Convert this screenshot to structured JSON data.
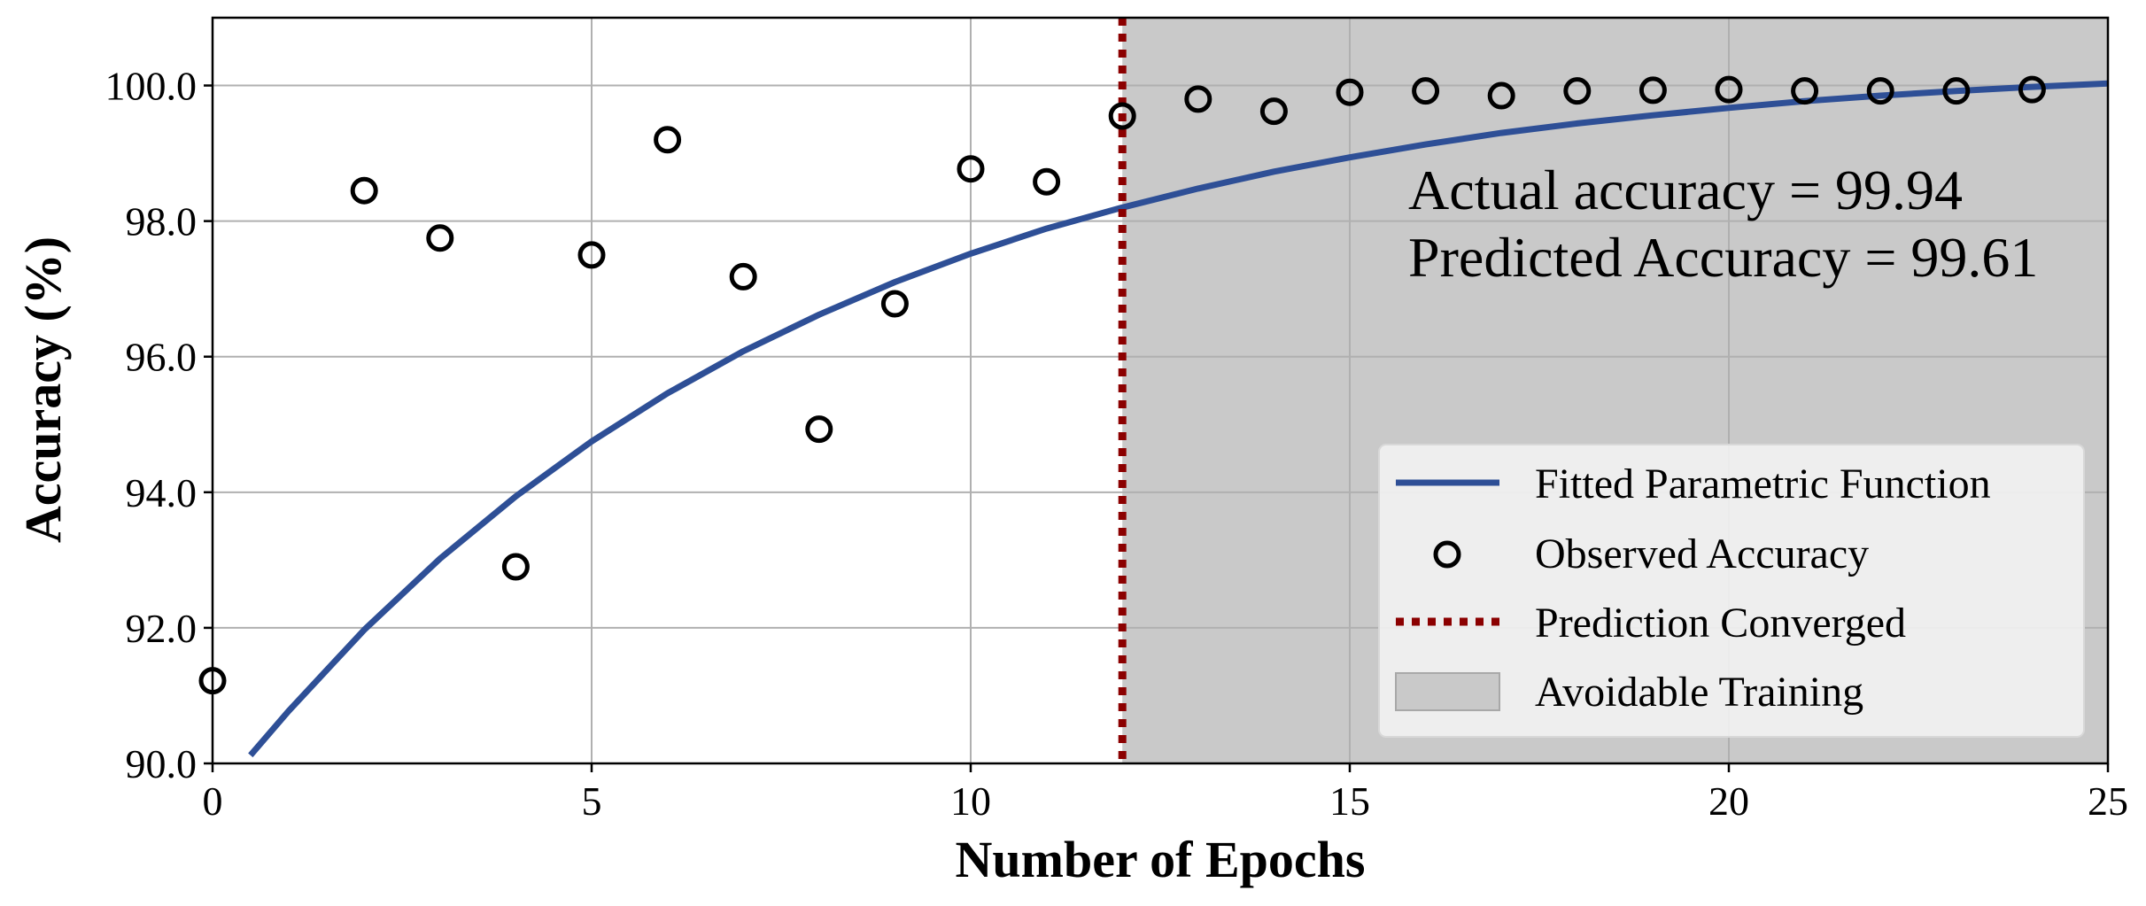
{
  "chart_data": {
    "type": "line",
    "xlabel": "Number of Epochs",
    "ylabel": "Accuracy (%)",
    "xlim": [
      0,
      25
    ],
    "ylim": [
      90,
      101
    ],
    "x_ticks": [
      0,
      5,
      10,
      15,
      20,
      25
    ],
    "x_tick_labels": [
      "0",
      "5",
      "10",
      "15",
      "20",
      "25"
    ],
    "y_ticks": [
      90,
      92,
      94,
      96,
      98,
      100
    ],
    "y_tick_labels": [
      "90.0",
      "92.0",
      "94.0",
      "96.0",
      "98.0",
      "100.0"
    ],
    "grid": true,
    "legend_position": "bottom-right",
    "annotations": [
      "Actual accuracy = 99.94",
      "Predicted Accuracy = 99.61"
    ],
    "series": [
      {
        "name": "Fitted Parametric Function",
        "kind": "line",
        "color": "#2e4f96",
        "x": [
          0.5,
          1,
          2,
          3,
          4,
          5,
          6,
          7,
          8,
          9,
          10,
          11,
          12,
          13,
          14,
          15,
          16,
          17,
          18,
          19,
          20,
          21,
          22,
          23,
          24,
          25
        ],
        "y": [
          90.12,
          90.77,
          91.97,
          93.02,
          93.94,
          94.75,
          95.46,
          96.08,
          96.62,
          97.1,
          97.52,
          97.89,
          98.2,
          98.48,
          98.73,
          98.94,
          99.13,
          99.3,
          99.44,
          99.56,
          99.67,
          99.77,
          99.85,
          99.92,
          99.98,
          100.03
        ]
      },
      {
        "name": "Observed Accuracy",
        "kind": "scatter",
        "color": "#000000",
        "x": [
          0,
          2,
          3,
          4,
          5,
          6,
          7,
          8,
          9,
          10,
          11,
          12,
          13,
          14,
          15,
          16,
          17,
          18,
          19,
          20,
          21,
          22,
          23,
          24
        ],
        "y": [
          91.22,
          98.45,
          97.75,
          92.9,
          97.5,
          99.2,
          97.18,
          94.93,
          96.78,
          98.77,
          98.58,
          99.55,
          99.8,
          99.62,
          99.9,
          99.92,
          99.85,
          99.92,
          99.93,
          99.94,
          99.92,
          99.92,
          99.92,
          99.94
        ]
      },
      {
        "name": "Prediction Converged",
        "kind": "vline",
        "color": "#8b0000",
        "x": 12
      },
      {
        "name": "Avoidable Training",
        "kind": "span",
        "color": "#c9c9c9",
        "x_start": 12,
        "x_end": 25
      }
    ]
  }
}
